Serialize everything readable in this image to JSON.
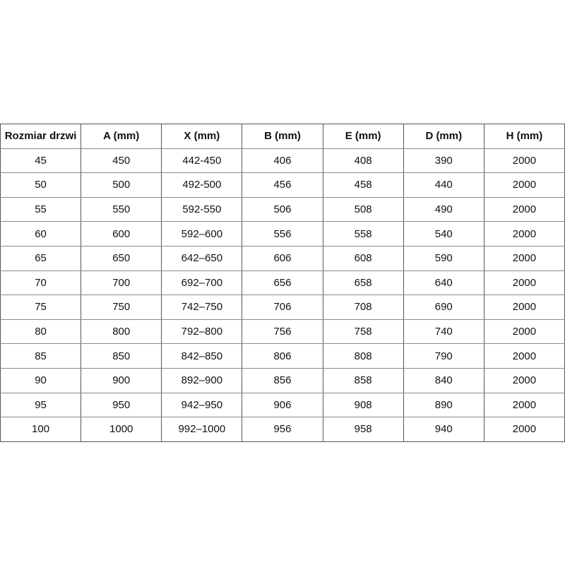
{
  "table": {
    "headers": [
      "Rozmiar drzwi",
      "A (mm)",
      "X (mm)",
      "B (mm)",
      "E (mm)",
      "D (mm)",
      "H (mm)"
    ],
    "rows": [
      [
        "45",
        "450",
        "442-450",
        "406",
        "408",
        "390",
        "2000"
      ],
      [
        "50",
        "500",
        "492-500",
        "456",
        "458",
        "440",
        "2000"
      ],
      [
        "55",
        "550",
        "592-550",
        "506",
        "508",
        "490",
        "2000"
      ],
      [
        "60",
        "600",
        "592–600",
        "556",
        "558",
        "540",
        "2000"
      ],
      [
        "65",
        "650",
        "642–650",
        "606",
        "608",
        "590",
        "2000"
      ],
      [
        "70",
        "700",
        "692–700",
        "656",
        "658",
        "640",
        "2000"
      ],
      [
        "75",
        "750",
        "742–750",
        "706",
        "708",
        "690",
        "2000"
      ],
      [
        "80",
        "800",
        "792–800",
        "756",
        "758",
        "740",
        "2000"
      ],
      [
        "85",
        "850",
        "842–850",
        "806",
        "808",
        "790",
        "2000"
      ],
      [
        "90",
        "900",
        "892–900",
        "856",
        "858",
        "840",
        "2000"
      ],
      [
        "95",
        "950",
        "942–950",
        "906",
        "908",
        "890",
        "2000"
      ],
      [
        "100",
        "1000",
        "992–1000",
        "956",
        "958",
        "940",
        "2000"
      ]
    ]
  }
}
